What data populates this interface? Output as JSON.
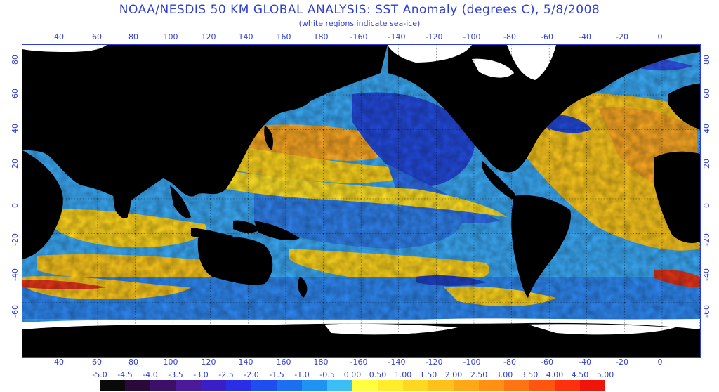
{
  "title": "NOAA/NESDIS 50 KM GLOBAL ANALYSIS: SST Anomaly (degrees C), 5/8/2008",
  "subtitle": "(white regions indicate sea-ice)",
  "longitude_ticks": [
    "40",
    "60",
    "80",
    "100",
    "120",
    "140",
    "160",
    "180",
    "-160",
    "-140",
    "-120",
    "-100",
    "-80",
    "-60",
    "-40",
    "-20",
    "0"
  ],
  "latitude_ticks": [
    "80",
    "60",
    "40",
    "20",
    "0",
    "-20",
    "-40",
    "-60"
  ],
  "legend": {
    "labels": [
      "-5.0",
      "-4.5",
      "-4.0",
      "-3.5",
      "-3.0",
      "-2.5",
      "-2.0",
      "-1.5",
      "-1.0",
      "-0.5",
      "0.00",
      "0.50",
      "1.00",
      "1.50",
      "2.00",
      "2.50",
      "3.00",
      "3.50",
      "4.00",
      "4.50",
      "5.00"
    ],
    "colors": [
      "#0a0a0a",
      "#2a0a3a",
      "#3c0f6a",
      "#4b1a9a",
      "#3a1fc8",
      "#2a2ee6",
      "#1e4df0",
      "#1d6ff2",
      "#1f93f4",
      "#3bbef4",
      "#ffff40",
      "#ffec2a",
      "#ffd81f",
      "#ffc11a",
      "#ffa816",
      "#ff9014",
      "#ff7412",
      "#ff5510",
      "#ff300e",
      "#f0140a"
    ]
  },
  "colors": {
    "land": "#000000",
    "sea_ice": "#ffffff",
    "ocean_cool": "#3aa7f2",
    "ocean_cold": "#2446d9",
    "ocean_warm": "#f7d21c",
    "ocean_hot": "#f59a22",
    "text": "#2f3fcf"
  }
}
